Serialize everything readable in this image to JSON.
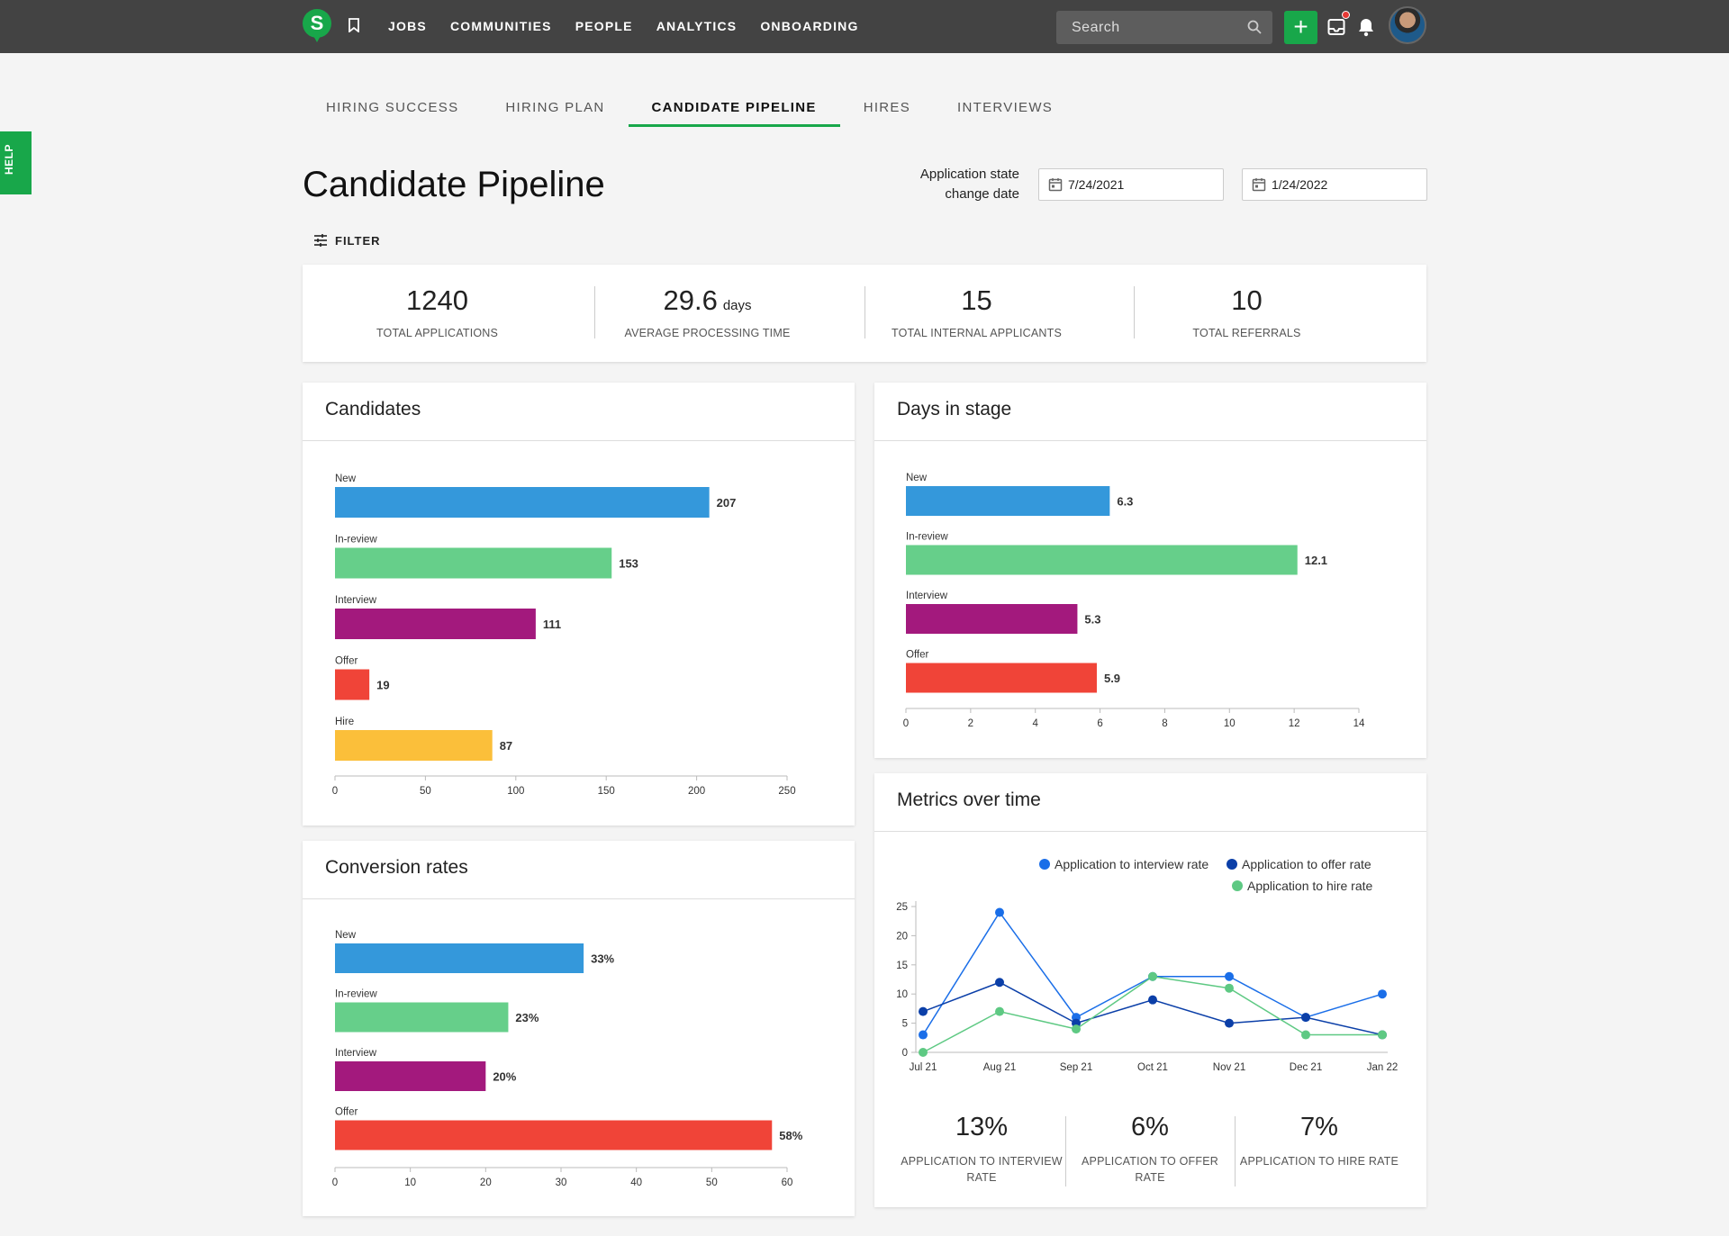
{
  "nav": {
    "logo": "S",
    "items": [
      "JOBS",
      "COMMUNITIES",
      "PEOPLE",
      "ANALYTICS",
      "ONBOARDING"
    ],
    "search_placeholder": "Search",
    "add_label": "+"
  },
  "help_label": "HELP",
  "tabs": [
    "HIRING SUCCESS",
    "HIRING PLAN",
    "CANDIDATE PIPELINE",
    "HIRES",
    "INTERVIEWS"
  ],
  "active_tab": "CANDIDATE PIPELINE",
  "page": {
    "title": "Candidate Pipeline",
    "date_label": "Application state change date",
    "date_from": "7/24/2021",
    "date_to": "1/24/2022",
    "filter_label": "FILTER"
  },
  "stats": [
    {
      "value": "1240",
      "unit": "",
      "label": "TOTAL APPLICATIONS"
    },
    {
      "value": "29.6",
      "unit": "days",
      "label": "AVERAGE PROCESSING TIME"
    },
    {
      "value": "15",
      "unit": "",
      "label": "TOTAL INTERNAL APPLICANTS"
    },
    {
      "value": "10",
      "unit": "",
      "label": "TOTAL REFERRALS"
    }
  ],
  "panels": {
    "candidates": "Candidates",
    "days_in_stage": "Days in stage",
    "conversion_rates": "Conversion rates",
    "metrics_over_time": "Metrics over time"
  },
  "colors": {
    "green_brand": "#18a74a",
    "new": "#3498db",
    "in_review": "#66cf8a",
    "interview": "#a3197d",
    "offer": "#f04438",
    "hire": "#fbbf3a",
    "interview_rate": "#1a6ee8",
    "offer_rate": "#0b3fa8",
    "hire_rate": "#5ec983"
  },
  "chart_data": [
    {
      "type": "bar",
      "orientation": "horizontal",
      "title": "Candidates",
      "categories": [
        "New",
        "In-review",
        "Interview",
        "Offer",
        "Hire"
      ],
      "values": [
        207,
        153,
        111,
        19,
        87
      ],
      "value_labels": [
        "207",
        "153",
        "111",
        "19",
        "87"
      ],
      "xlim": [
        0,
        250
      ],
      "xticks": [
        0,
        50,
        100,
        150,
        200,
        250
      ]
    },
    {
      "type": "bar",
      "orientation": "horizontal",
      "title": "Days in stage",
      "categories": [
        "New",
        "In-review",
        "Interview",
        "Offer"
      ],
      "values": [
        6.3,
        12.1,
        5.3,
        5.9
      ],
      "value_labels": [
        "6.3",
        "12.1",
        "5.3",
        "5.9"
      ],
      "xlim": [
        0,
        14
      ],
      "xticks": [
        0,
        2,
        4,
        6,
        8,
        10,
        12,
        14
      ]
    },
    {
      "type": "bar",
      "orientation": "horizontal",
      "title": "Conversion rates",
      "categories": [
        "New",
        "In-review",
        "Interview",
        "Offer"
      ],
      "values": [
        33,
        23,
        20,
        58
      ],
      "value_labels": [
        "33%",
        "23%",
        "20%",
        "58%"
      ],
      "xlim": [
        0,
        60
      ],
      "xticks": [
        0,
        10,
        20,
        30,
        40,
        50,
        60
      ]
    },
    {
      "type": "line",
      "title": "Metrics over time",
      "categories": [
        "Jul 21",
        "Aug 21",
        "Sep 21",
        "Oct 21",
        "Nov 21",
        "Dec 21",
        "Jan 22"
      ],
      "ylim": [
        0,
        25
      ],
      "yticks": [
        0,
        5,
        10,
        15,
        20,
        25
      ],
      "legend": "top-right",
      "series": [
        {
          "name": "Application to interview rate",
          "values": [
            3,
            24,
            6,
            13,
            13,
            6,
            10
          ]
        },
        {
          "name": "Application to offer rate",
          "values": [
            7,
            12,
            5,
            9,
            5,
            6,
            3
          ]
        },
        {
          "name": "Application to hire rate",
          "values": [
            0,
            7,
            4,
            13,
            11,
            3,
            3
          ]
        }
      ]
    }
  ],
  "summary_metrics": [
    {
      "value": "13%",
      "label": "APPLICATION TO INTERVIEW RATE"
    },
    {
      "value": "6%",
      "label": "APPLICATION TO OFFER RATE"
    },
    {
      "value": "7%",
      "label": "APPLICATION TO HIRE RATE"
    }
  ]
}
